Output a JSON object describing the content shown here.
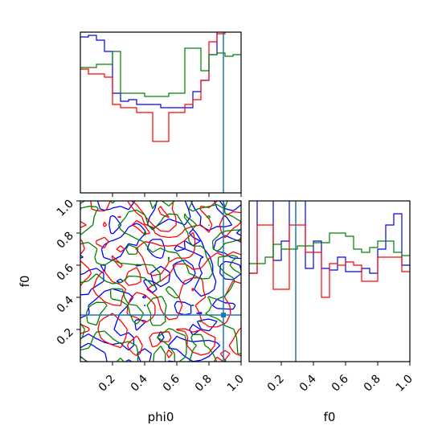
{
  "chart_data": {
    "type": "corner",
    "parameters": [
      "phi0",
      "f0"
    ],
    "xlabel": "phi0",
    "xlabel2": "f0",
    "ylabel": "f0",
    "range": [
      0,
      1
    ],
    "ticks": [
      "0.2",
      "0.4",
      "0.6",
      "0.8",
      "1.0"
    ],
    "tick_values": [
      0.2,
      0.4,
      0.6,
      0.8,
      1.0
    ],
    "truth": {
      "phi0": 0.89,
      "f0": 0.29,
      "color": "#1f77b4"
    },
    "series": [
      {
        "color": "#0000ff"
      },
      {
        "color": "#ff0000"
      },
      {
        "color": "#008000"
      }
    ],
    "hist_phi0": {
      "bins": 20,
      "blue": [
        0.97,
        0.98,
        0.95,
        0.88,
        0.62,
        0.57,
        0.58,
        0.55,
        0.55,
        0.55,
        0.53,
        0.53,
        0.53,
        0.53,
        0.63,
        0.7,
        0.86,
        1.02,
        1.02,
        1.02
      ],
      "red": [
        0.77,
        0.74,
        0.74,
        0.72,
        0.55,
        0.53,
        0.53,
        0.5,
        0.5,
        0.32,
        0.32,
        0.5,
        0.5,
        0.55,
        0.58,
        0.7,
        0.94,
        0.99,
        1.02,
        1.02
      ],
      "green": [
        0.78,
        0.78,
        0.8,
        0.8,
        0.88,
        0.62,
        0.62,
        0.62,
        0.6,
        0.6,
        0.6,
        0.62,
        0.62,
        0.9,
        0.9,
        0.76,
        0.86,
        0.87,
        0.85,
        0.86
      ]
    },
    "hist_f0": {
      "bins": 20,
      "blue": [
        0.55,
        1.05,
        1.05,
        0.63,
        0.75,
        1.05,
        1.05,
        0.58,
        0.75,
        0.58,
        0.57,
        0.65,
        0.56,
        0.56,
        0.58,
        0.55,
        0.7,
        0.85,
        0.92,
        0.6
      ],
      "red": [
        0.55,
        0.85,
        0.85,
        0.45,
        0.45,
        0.85,
        0.85,
        0.68,
        0.68,
        0.4,
        0.61,
        0.6,
        0.62,
        0.6,
        0.5,
        0.5,
        0.65,
        0.65,
        0.65,
        0.56
      ],
      "green": [
        0.61,
        0.61,
        0.65,
        0.73,
        0.7,
        0.7,
        0.72,
        0.72,
        0.74,
        0.74,
        0.8,
        0.8,
        0.78,
        0.7,
        0.68,
        0.71,
        0.75,
        0.75,
        0.68,
        0.66
      ]
    }
  }
}
